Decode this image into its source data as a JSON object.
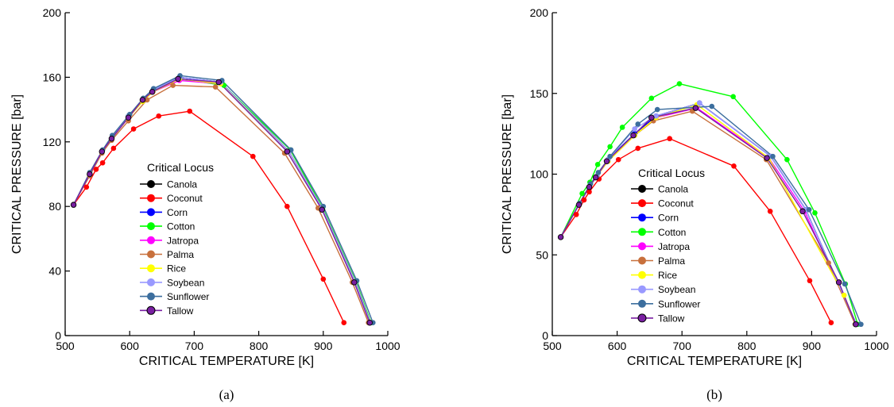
{
  "chart_data": [
    {
      "type": "line",
      "panel_label": "(a)",
      "xlabel": "CRITICAL TEMPERATURE [K]",
      "ylabel": "CRITICAL PRESSURE [bar]",
      "xlim": [
        500,
        1000
      ],
      "ylim": [
        0,
        200
      ],
      "xticks": [
        500,
        600,
        700,
        800,
        900,
        1000
      ],
      "yticks": [
        0,
        40,
        80,
        120,
        160,
        200
      ],
      "legend_title": "Critical Locus",
      "legend_position": "center",
      "grid": false,
      "series": [
        {
          "name": "Canola",
          "color": "#000000",
          "x": [
            513,
            538,
            557,
            572,
            598,
            620,
            636,
            677,
            741,
            847,
            898,
            950,
            973
          ],
          "y": [
            81,
            100,
            114,
            122,
            136,
            146,
            152,
            160,
            157,
            114,
            79,
            33,
            8
          ]
        },
        {
          "name": "Coconut",
          "color": "#ff0000",
          "x": [
            513,
            533,
            548,
            558,
            575,
            606,
            645,
            693,
            791,
            844,
            900,
            932
          ],
          "y": [
            81,
            92,
            103,
            107,
            116,
            128,
            136,
            139,
            111,
            80,
            35,
            8
          ]
        },
        {
          "name": "Corn",
          "color": "#0000ff",
          "x": [
            513,
            538,
            557,
            572,
            598,
            620,
            636,
            677,
            741,
            847,
            898,
            950,
            973
          ],
          "y": [
            81,
            100,
            114,
            122,
            136,
            146,
            152,
            160,
            157,
            114,
            79,
            33,
            8
          ]
        },
        {
          "name": "Cotton",
          "color": "#00ff00",
          "x": [
            513,
            538,
            557,
            572,
            598,
            620,
            636,
            677,
            746,
            849,
            899,
            951,
            974
          ],
          "y": [
            81,
            100,
            114,
            122,
            136,
            146,
            152,
            159,
            155,
            115,
            79,
            33,
            8
          ]
        },
        {
          "name": "Jatropa",
          "color": "#ff00ff",
          "x": [
            513,
            538,
            557,
            572,
            598,
            620,
            636,
            677,
            741,
            847,
            898,
            950,
            973
          ],
          "y": [
            81,
            100,
            114,
            122,
            135,
            145,
            151,
            158,
            156,
            114,
            79,
            33,
            8
          ]
        },
        {
          "name": "Palma",
          "color": "#c8703c",
          "x": [
            513,
            538,
            557,
            572,
            598,
            627,
            667,
            733,
            840,
            892,
            945,
            970
          ],
          "y": [
            81,
            99,
            113,
            121,
            133,
            146,
            155,
            154,
            113,
            79,
            33,
            8
          ]
        },
        {
          "name": "Rice",
          "color": "#ffff00",
          "x": [
            513,
            538,
            557,
            572,
            598,
            620,
            636,
            677,
            741,
            847,
            898,
            950,
            973
          ],
          "y": [
            81,
            100,
            114,
            122,
            135,
            145,
            151,
            159,
            156,
            114,
            79,
            33,
            8
          ]
        },
        {
          "name": "Soybean",
          "color": "#9999ff",
          "x": [
            513,
            538,
            557,
            572,
            598,
            620,
            636,
            677,
            741,
            847,
            898,
            950,
            973
          ],
          "y": [
            81,
            100,
            114,
            122,
            136,
            146,
            152,
            160,
            157,
            114,
            79,
            33,
            8
          ]
        },
        {
          "name": "Sunflower",
          "color": "#3c6e9e",
          "x": [
            513,
            538,
            558,
            573,
            600,
            621,
            637,
            678,
            743,
            850,
            900,
            952,
            977
          ],
          "y": [
            81,
            101,
            115,
            124,
            137,
            147,
            153,
            161,
            158,
            115,
            80,
            34,
            8
          ]
        },
        {
          "name": "Tallow",
          "color": "#7a1fa2",
          "x": [
            513,
            538,
            557,
            572,
            598,
            620,
            635,
            675,
            738,
            844,
            898,
            948,
            972
          ],
          "y": [
            81,
            100,
            114,
            122,
            135,
            146,
            151,
            159,
            157,
            114,
            78,
            33,
            8
          ]
        }
      ]
    },
    {
      "type": "line",
      "panel_label": "(b)",
      "xlabel": "CRITICAL TEMPERATURE [K]",
      "ylabel": "CRITICAL PRESSURE [bar]",
      "xlim": [
        500,
        1000
      ],
      "ylim": [
        0,
        200
      ],
      "xticks": [
        500,
        600,
        700,
        800,
        900,
        1000
      ],
      "yticks": [
        0,
        50,
        100,
        150,
        200
      ],
      "legend_title": "Critical Locus",
      "legend_position": "center",
      "grid": false,
      "series": [
        {
          "name": "Canola",
          "color": "#000000",
          "x": [
            513,
            541,
            557,
            569,
            586,
            627,
            660,
            727,
            837,
            891,
            969
          ],
          "y": [
            61,
            81,
            92,
            99,
            109,
            125,
            136,
            144,
            111,
            78,
            7
          ]
        },
        {
          "name": "Coconut",
          "color": "#ff0000",
          "x": [
            513,
            537,
            549,
            557,
            572,
            602,
            632,
            681,
            780,
            836,
            897,
            930
          ],
          "y": [
            61,
            75,
            84,
            89,
            97,
            109,
            116,
            122,
            105,
            77,
            34,
            8
          ]
        },
        {
          "name": "Corn",
          "color": "#0000ff",
          "x": [
            513,
            541,
            557,
            569,
            586,
            627,
            660,
            727,
            837,
            891,
            969
          ],
          "y": [
            61,
            81,
            92,
            99,
            109,
            125,
            136,
            144,
            111,
            78,
            7
          ]
        },
        {
          "name": "Cotton",
          "color": "#00ff00",
          "x": [
            513,
            546,
            558,
            570,
            589,
            608,
            653,
            696,
            779,
            862,
            905,
            952,
            971
          ],
          "y": [
            61,
            88,
            95,
            106,
            117,
            129,
            147,
            156,
            148,
            109,
            76,
            32,
            7
          ]
        },
        {
          "name": "Jatropa",
          "color": "#ff00ff",
          "x": [
            513,
            541,
            557,
            569,
            586,
            627,
            660,
            723,
            834,
            889,
            968
          ],
          "y": [
            61,
            81,
            92,
            99,
            108,
            124,
            135,
            141,
            110,
            77,
            7
          ]
        },
        {
          "name": "Palma",
          "color": "#c8703c",
          "x": [
            513,
            541,
            557,
            569,
            586,
            627,
            656,
            716,
            830,
            926,
            967
          ],
          "y": [
            61,
            81,
            92,
            99,
            108,
            124,
            133,
            139,
            109,
            45,
            7
          ]
        },
        {
          "name": "Rice",
          "color": "#ffff00",
          "x": [
            513,
            541,
            557,
            569,
            586,
            627,
            660,
            723,
            834,
            950,
            968
          ],
          "y": [
            61,
            81,
            92,
            99,
            108,
            124,
            135,
            143,
            110,
            25,
            7
          ]
        },
        {
          "name": "Soybean",
          "color": "#9999ff",
          "x": [
            513,
            541,
            557,
            569,
            586,
            627,
            660,
            727,
            837,
            891,
            969
          ],
          "y": [
            61,
            81,
            92,
            99,
            109,
            128,
            136,
            144,
            111,
            78,
            7
          ]
        },
        {
          "name": "Sunflower",
          "color": "#3c6e9e",
          "x": [
            513,
            542,
            559,
            571,
            589,
            632,
            662,
            746,
            840,
            896,
            951,
            976
          ],
          "y": [
            61,
            82,
            94,
            101,
            111,
            131,
            140,
            142,
            111,
            78,
            32,
            7
          ]
        },
        {
          "name": "Tallow",
          "color": "#7a1fa2",
          "x": [
            513,
            541,
            557,
            567,
            584,
            625,
            653,
            721,
            831,
            886,
            942,
            968
          ],
          "y": [
            61,
            81,
            92,
            98,
            108,
            124,
            135,
            141,
            110,
            77,
            33,
            7
          ]
        }
      ]
    }
  ]
}
